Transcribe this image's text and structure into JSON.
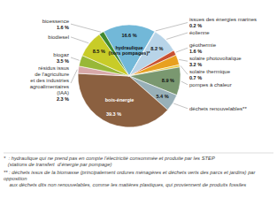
{
  "chart_data": {
    "type": "pie",
    "categories": [
      "hydraulique\n(hors pompages)*",
      "issues des énergies marines",
      "éolienne",
      "géothermie",
      "solaire photovoltaïque",
      "solaire thermique",
      "pompes à chaleur",
      "déchets renouvelables**",
      "bois-énergie",
      "résidus issus\nde l'agriculture\net des industries\nagroalimentaires\n(IAA)",
      "biogaz",
      "biodiesel",
      "bioessence"
    ],
    "values": [
      16.6,
      0.2,
      8.2,
      1.6,
      3.2,
      0.7,
      8.9,
      5.4,
      39.3,
      2.3,
      3.5,
      8.5,
      1.6
    ],
    "value_labels": [
      "16.6 %",
      "0.2 %",
      "8.2 %",
      "1.6 %",
      "3.2 %",
      "0.7 %",
      "8.9 %",
      "5.4 %",
      "39.3 %",
      "2.3 %",
      "3.5 %",
      "8.5 %",
      "1.6 %"
    ],
    "colors": [
      "#72b8d8",
      "#b0cce0",
      "#b8d4e8",
      "#c85030",
      "#e8a020",
      "#e8c838",
      "#7a9870",
      "#98b0b8",
      "#8b6040",
      "#d8a8a8",
      "#98b838",
      "#c8cc28",
      "#408830"
    ],
    "data_labels": true,
    "annotations": [
      "*  : hydraulique qui ne prend pas en compte l’électricité consommée et produite par les STEP\n   (stations de transfert  d’énergie par pompage)",
      "** : déchets issus de la biomasse (principalement ordures ménagères et déchets verts des parcs et jardins) par opposition\n    aux déchets dits non renouvelables, comme les matières plastiques, qui proviennent de produits fossiles"
    ]
  }
}
